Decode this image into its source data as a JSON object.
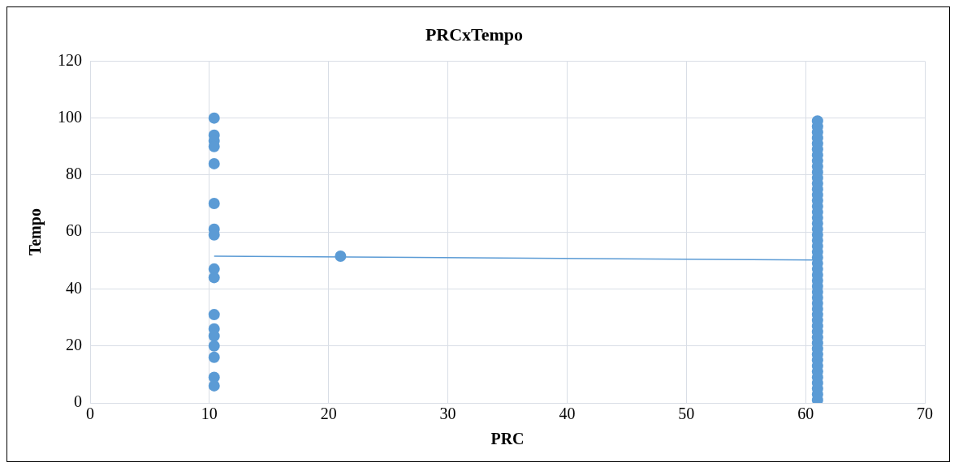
{
  "chart_data": {
    "type": "scatter",
    "title": "PRCxTempo",
    "xlabel": "PRC",
    "ylabel": "Tempo",
    "xlim": [
      0,
      70
    ],
    "xticks": [
      0,
      10,
      20,
      30,
      40,
      50,
      60,
      70
    ],
    "ylim": [
      0,
      120
    ],
    "yticks": [
      0,
      20,
      40,
      60,
      80,
      100,
      120
    ],
    "grid": true,
    "legend": false,
    "marker": "circle",
    "series": [
      {
        "type": "scatter",
        "color": "#5b9bd5",
        "x": [
          10.4,
          10.4,
          10.4,
          10.4,
          10.4,
          10.4,
          10.4,
          10.4,
          10.4,
          10.4,
          10.4,
          10.4,
          10.4,
          10.4,
          10.4,
          10.4,
          10.4,
          21,
          61,
          61,
          61,
          61,
          61,
          61,
          61,
          61,
          61,
          61,
          61,
          61,
          61,
          61,
          61,
          61,
          61,
          61,
          61,
          61,
          61,
          61,
          61,
          61,
          61,
          61,
          61,
          61,
          61,
          61,
          61,
          61,
          61,
          61,
          61,
          61,
          61,
          61,
          61,
          61,
          61,
          61,
          61,
          61,
          61,
          61,
          61,
          61,
          61,
          61
        ],
        "values": [
          100,
          94,
          92,
          90,
          84,
          70,
          61,
          59,
          47,
          44,
          31,
          26,
          23.5,
          20,
          16,
          9,
          6,
          51.5,
          1,
          3,
          5,
          7,
          9,
          11,
          13,
          15,
          17,
          19,
          21,
          23,
          25,
          27,
          29,
          31,
          33,
          35,
          37,
          39,
          41,
          43,
          45,
          47,
          49,
          51,
          53,
          55,
          57,
          59,
          61,
          63,
          65,
          67,
          69,
          71,
          73,
          75,
          77,
          79,
          81,
          83,
          85,
          87,
          89,
          91,
          93,
          95,
          97,
          99
        ]
      },
      {
        "type": "line",
        "color": "#5b9bd5",
        "x": [
          10.4,
          61
        ],
        "values": [
          51.5,
          50.2
        ],
        "line_style": "solid",
        "marker": "none"
      }
    ]
  }
}
